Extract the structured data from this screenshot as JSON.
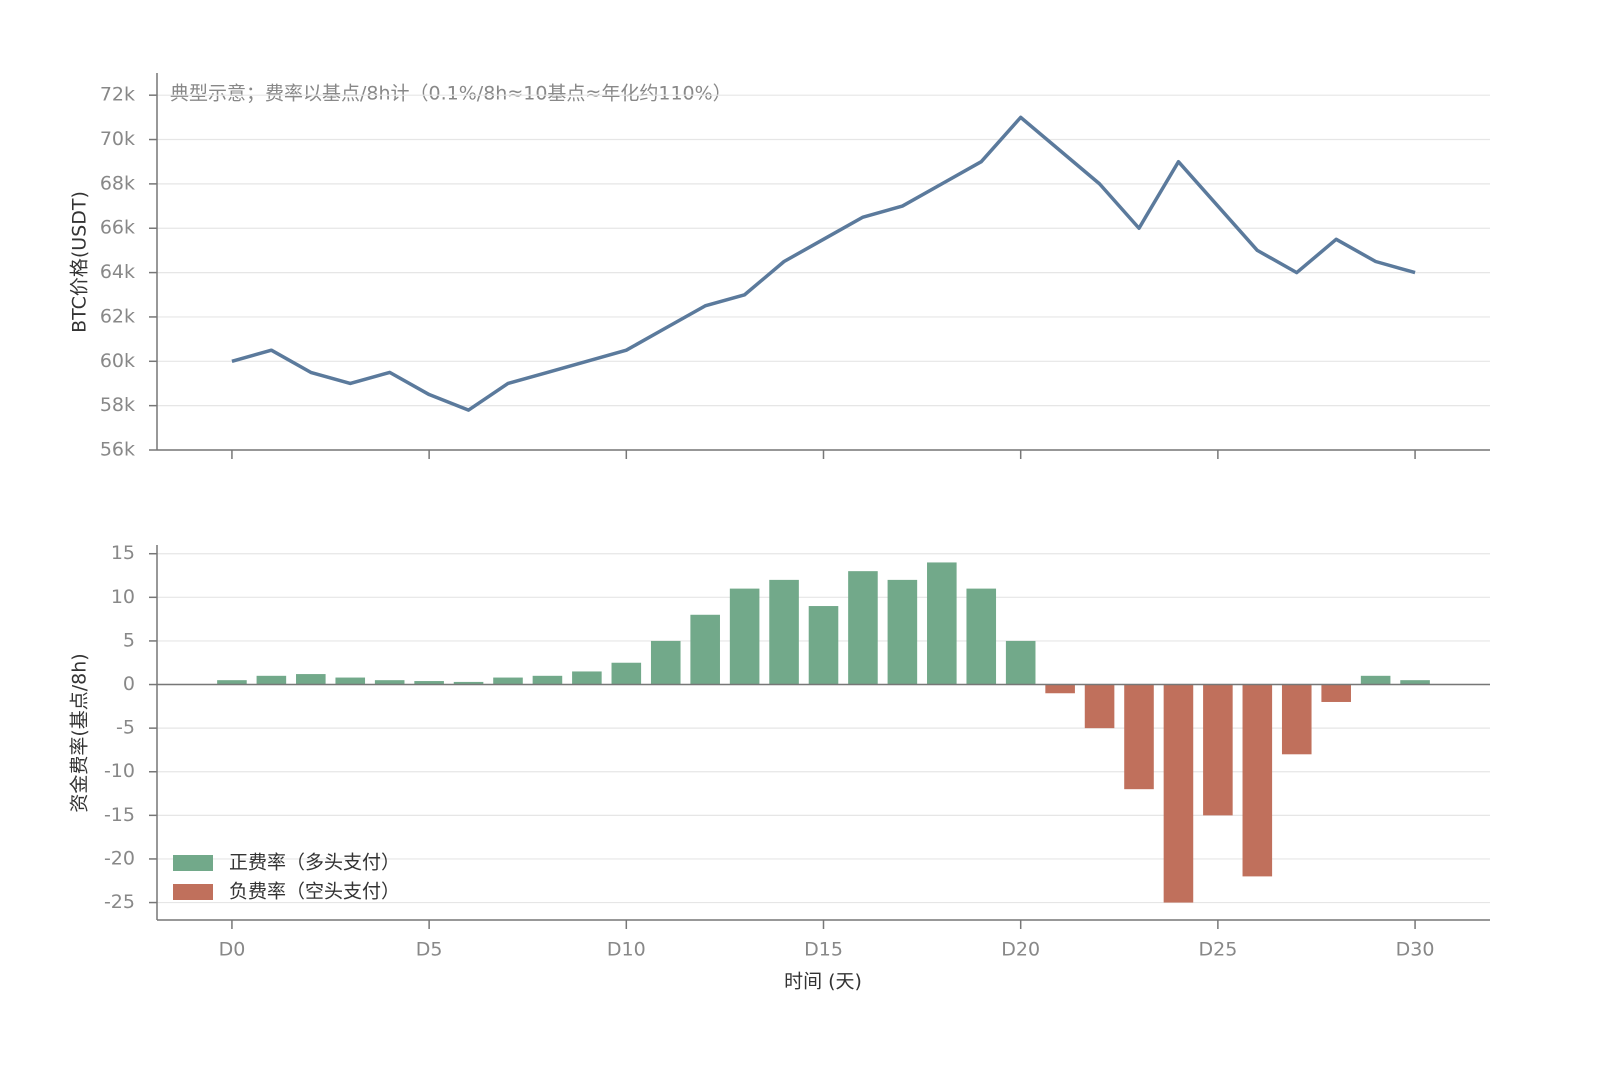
{
  "chart_data": [
    {
      "type": "line",
      "annotation": "典型示意；费率以基点/8h计（0.1%/8h≈10基点≈年化约110%）",
      "y_label": "BTC价格(USDT)",
      "x": [
        0,
        1,
        2,
        3,
        4,
        5,
        6,
        7,
        8,
        9,
        10,
        11,
        12,
        13,
        14,
        15,
        16,
        17,
        18,
        19,
        20,
        21,
        22,
        23,
        24,
        25,
        26,
        27,
        28,
        29,
        30
      ],
      "values": [
        60000,
        60500,
        59500,
        59000,
        59500,
        58500,
        57800,
        59000,
        59500,
        60000,
        60500,
        61500,
        62500,
        63000,
        64500,
        65500,
        66500,
        67000,
        68000,
        69000,
        71000,
        69500,
        68000,
        66000,
        69000,
        67000,
        65000,
        64000,
        65500,
        64500,
        64000
      ],
      "color": "#5b7a9c",
      "xlim": [
        -1.9,
        31.9
      ],
      "xticks": [
        0,
        5,
        10,
        15,
        20,
        25,
        30
      ],
      "ylim": [
        56000,
        73000
      ],
      "yticks": [
        {
          "value": 56000,
          "label": "56k"
        },
        {
          "value": 58000,
          "label": "58k"
        },
        {
          "value": 60000,
          "label": "60k"
        },
        {
          "value": 62000,
          "label": "62k"
        },
        {
          "value": 64000,
          "label": "64k"
        },
        {
          "value": 66000,
          "label": "66k"
        },
        {
          "value": 68000,
          "label": "68k"
        },
        {
          "value": 70000,
          "label": "70k"
        },
        {
          "value": 72000,
          "label": "72k"
        }
      ],
      "grid": true
    },
    {
      "type": "bar",
      "y_label": "资金费率(基点/8h)",
      "x_label": "时间 (天)",
      "x": [
        0,
        1,
        2,
        3,
        4,
        5,
        6,
        7,
        8,
        9,
        10,
        11,
        12,
        13,
        14,
        15,
        16,
        17,
        18,
        19,
        20,
        21,
        22,
        23,
        24,
        25,
        26,
        27,
        28,
        29,
        30
      ],
      "series": [
        {
          "name": "正费率（多头支付）",
          "color": "#72a98a",
          "values": [
            0.5,
            1,
            1.2,
            0.8,
            0.5,
            0.4,
            0.3,
            0.8,
            1,
            1.5,
            2.5,
            5,
            8,
            11,
            12,
            9,
            13,
            12,
            14,
            11,
            5,
            null,
            null,
            null,
            null,
            null,
            null,
            null,
            null,
            1,
            0.5
          ]
        },
        {
          "name": "负费率（空头支付）",
          "color": "#c0705c",
          "values": [
            null,
            null,
            null,
            null,
            null,
            null,
            null,
            null,
            null,
            null,
            null,
            null,
            null,
            null,
            null,
            null,
            null,
            null,
            null,
            null,
            null,
            -1,
            -5,
            -12,
            -25,
            -15,
            -22,
            -8,
            -2,
            null,
            null
          ]
        }
      ],
      "xlim": [
        -1.9,
        31.9
      ],
      "xticks": [
        {
          "value": 0,
          "label": "D0"
        },
        {
          "value": 5,
          "label": "D5"
        },
        {
          "value": 10,
          "label": "D10"
        },
        {
          "value": 15,
          "label": "D15"
        },
        {
          "value": 20,
          "label": "D20"
        },
        {
          "value": 25,
          "label": "D25"
        },
        {
          "value": 30,
          "label": "D30"
        }
      ],
      "ylim": [
        -27,
        16
      ],
      "yticks": [
        -25,
        -20,
        -15,
        -10,
        -5,
        0,
        5,
        10,
        15
      ],
      "grid": true,
      "legend": "lower left"
    }
  ]
}
